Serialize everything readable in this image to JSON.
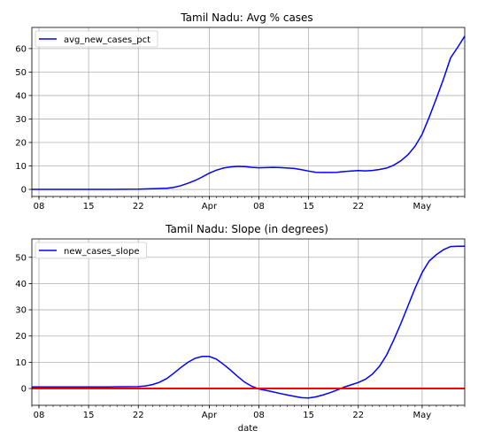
{
  "chart_data": [
    {
      "type": "line",
      "title": "Tamil Nadu: Avg % cases",
      "xlabel": "",
      "ylabel": "",
      "x_tick_labels": [
        "08",
        "15",
        "22",
        "Apr",
        "08",
        "15",
        "22",
        "May"
      ],
      "x_tick_dates": [
        "2020-03-08",
        "2020-03-15",
        "2020-03-22",
        "2020-04-01",
        "2020-04-08",
        "2020-04-15",
        "2020-04-22",
        "2020-05-01"
      ],
      "xlim": [
        "2020-03-07",
        "2020-05-07"
      ],
      "ylim": [
        -3,
        69
      ],
      "y_ticks": [
        0,
        10,
        20,
        30,
        40,
        50,
        60
      ],
      "grid": true,
      "legend_position": "top-left",
      "series": [
        {
          "name": "avg_new_cases_pct",
          "color": "#0000ff",
          "x": [
            "2020-03-07",
            "2020-03-10",
            "2020-03-14",
            "2020-03-18",
            "2020-03-22",
            "2020-03-24",
            "2020-03-26",
            "2020-03-27",
            "2020-03-28",
            "2020-03-29",
            "2020-03-30",
            "2020-03-31",
            "2020-04-01",
            "2020-04-02",
            "2020-04-03",
            "2020-04-04",
            "2020-04-05",
            "2020-04-06",
            "2020-04-07",
            "2020-04-08",
            "2020-04-09",
            "2020-04-10",
            "2020-04-11",
            "2020-04-12",
            "2020-04-13",
            "2020-04-14",
            "2020-04-15",
            "2020-04-16",
            "2020-04-17",
            "2020-04-18",
            "2020-04-19",
            "2020-04-20",
            "2020-04-21",
            "2020-04-22",
            "2020-04-23",
            "2020-04-24",
            "2020-04-25",
            "2020-04-26",
            "2020-04-27",
            "2020-04-28",
            "2020-04-29",
            "2020-04-30",
            "2020-05-01",
            "2020-05-02",
            "2020-05-03",
            "2020-05-04",
            "2020-05-05",
            "2020-05-06",
            "2020-05-07"
          ],
          "y": [
            0,
            0,
            0,
            0,
            0.1,
            0.3,
            0.5,
            0.9,
            1.6,
            2.6,
            3.8,
            5.3,
            6.9,
            8.2,
            9.1,
            9.6,
            9.8,
            9.7,
            9.4,
            9.2,
            9.3,
            9.4,
            9.3,
            9.1,
            8.9,
            8.4,
            7.8,
            7.3,
            7.2,
            7.2,
            7.3,
            7.6,
            7.8,
            8.0,
            7.9,
            8.1,
            8.5,
            9.1,
            10.3,
            12.2,
            14.8,
            18.4,
            23.5,
            30.8,
            38.7,
            47.0,
            56.0,
            60.5,
            65.3
          ]
        }
      ]
    },
    {
      "type": "line",
      "title": "Tamil Nadu: Slope (in degrees)",
      "xlabel": "date",
      "ylabel": "",
      "x_tick_labels": [
        "08",
        "15",
        "22",
        "Apr",
        "08",
        "15",
        "22",
        "May"
      ],
      "x_tick_dates": [
        "2020-03-08",
        "2020-03-15",
        "2020-03-22",
        "2020-04-01",
        "2020-04-08",
        "2020-04-15",
        "2020-04-22",
        "2020-05-01"
      ],
      "xlim": [
        "2020-03-07",
        "2020-05-07"
      ],
      "ylim": [
        -6.4,
        57
      ],
      "y_ticks": [
        0,
        10,
        20,
        30,
        40,
        50
      ],
      "grid": true,
      "legend_position": "top-left",
      "series": [
        {
          "name": "new_cases_slope",
          "color": "#0000ff",
          "x": [
            "2020-03-07",
            "2020-03-10",
            "2020-03-14",
            "2020-03-18",
            "2020-03-22",
            "2020-03-23",
            "2020-03-24",
            "2020-03-25",
            "2020-03-26",
            "2020-03-27",
            "2020-03-28",
            "2020-03-29",
            "2020-03-30",
            "2020-03-31",
            "2020-04-01",
            "2020-04-02",
            "2020-04-03",
            "2020-04-04",
            "2020-04-05",
            "2020-04-06",
            "2020-04-07",
            "2020-04-08",
            "2020-04-09",
            "2020-04-10",
            "2020-04-11",
            "2020-04-12",
            "2020-04-13",
            "2020-04-14",
            "2020-04-15",
            "2020-04-16",
            "2020-04-17",
            "2020-04-18",
            "2020-04-19",
            "2020-04-20",
            "2020-04-21",
            "2020-04-22",
            "2020-04-23",
            "2020-04-24",
            "2020-04-25",
            "2020-04-26",
            "2020-04-27",
            "2020-04-28",
            "2020-04-29",
            "2020-04-30",
            "2020-05-01",
            "2020-05-02",
            "2020-05-03",
            "2020-05-04",
            "2020-05-05",
            "2020-05-06",
            "2020-05-07"
          ],
          "y": [
            0.6,
            0.6,
            0.6,
            0.6,
            0.7,
            1.0,
            1.5,
            2.4,
            3.8,
            5.8,
            8.0,
            10.0,
            11.5,
            12.2,
            12.2,
            11.2,
            9.2,
            7.0,
            4.6,
            2.4,
            0.8,
            -0.2,
            -0.7,
            -1.3,
            -1.9,
            -2.5,
            -3.0,
            -3.5,
            -3.6,
            -3.2,
            -2.5,
            -1.6,
            -0.6,
            0.5,
            1.4,
            2.3,
            3.5,
            5.5,
            8.5,
            12.8,
            18.5,
            24.8,
            31.5,
            38.2,
            44.2,
            48.6,
            51.0,
            52.9,
            54.1,
            54.2,
            54.2
          ]
        },
        {
          "name": "",
          "color": "#ff0000",
          "x": [
            "2020-03-07",
            "2020-05-07"
          ],
          "y": [
            0,
            0
          ]
        }
      ]
    }
  ]
}
